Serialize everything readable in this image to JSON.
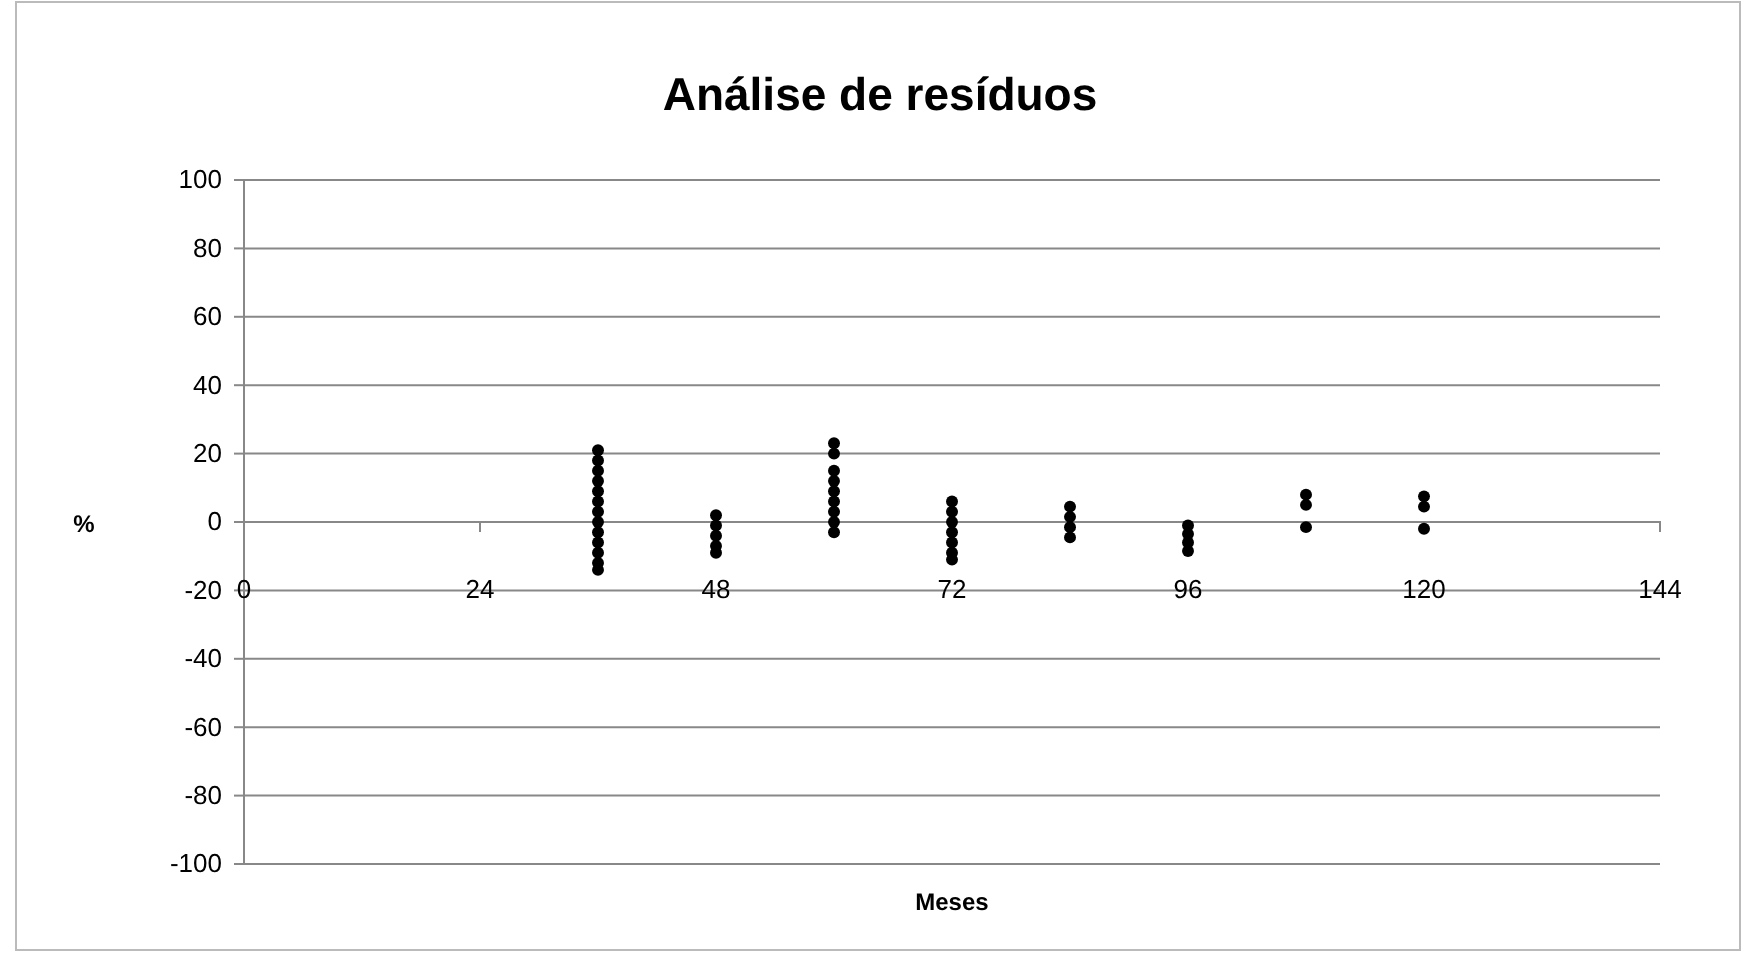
{
  "chart_data": {
    "type": "scatter",
    "title": "Análise de resíduos",
    "xlabel": "Meses",
    "ylabel": "%",
    "xlim": [
      0,
      144
    ],
    "xticks": [
      0,
      24,
      48,
      72,
      96,
      120,
      144
    ],
    "ylim": [
      -100,
      100
    ],
    "yticks": [
      -100,
      -80,
      -60,
      -40,
      -20,
      0,
      20,
      40,
      60,
      80,
      100
    ],
    "grid": "y",
    "marker": "circle",
    "series": [
      {
        "color": "#000000",
        "x": [
          36,
          36,
          36,
          36,
          36,
          36,
          36,
          36,
          36,
          36,
          36,
          36,
          36,
          48,
          48,
          48,
          48,
          48,
          60,
          60,
          60,
          60,
          60,
          60,
          60,
          60,
          60,
          72,
          72,
          72,
          72,
          72,
          72,
          72,
          84,
          84,
          84,
          84,
          96,
          96,
          96,
          96,
          108,
          108,
          108,
          120,
          120,
          120
        ],
        "values": [
          21,
          18,
          15,
          12,
          9,
          6,
          3,
          0,
          -3,
          -6,
          -9,
          -12,
          -14,
          2,
          -1,
          -4,
          -7,
          -9,
          23,
          20,
          15,
          12,
          9,
          6,
          3,
          0,
          -3,
          6,
          3,
          0,
          -3,
          -6,
          -9,
          -11,
          4.5,
          1.5,
          -1.5,
          -4.5,
          -1,
          -3.5,
          -6,
          -8.5,
          8,
          5,
          -1.5,
          7.5,
          4.5,
          -2
        ]
      }
    ]
  }
}
